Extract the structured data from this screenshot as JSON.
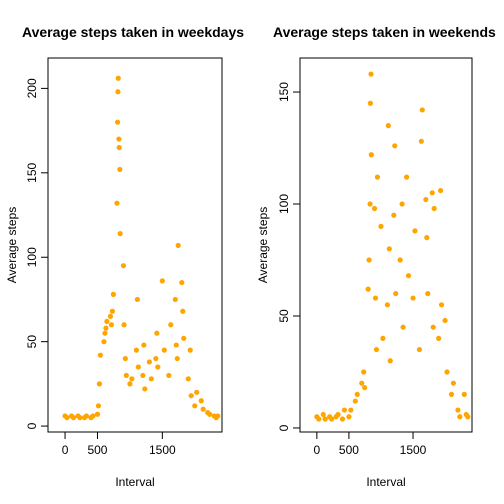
{
  "chart_data": [
    {
      "type": "scatter",
      "title": "Average steps taken in weekdays",
      "xlabel": "Interval",
      "ylabel": "Average steps",
      "color": "#FFA500",
      "xlim": [
        -263,
        2420
      ],
      "ylim": [
        -3.5,
        218
      ],
      "xticks": [
        0,
        500,
        1500
      ],
      "yticks": [
        0,
        50,
        100,
        150,
        200
      ],
      "x": [
        0,
        30,
        100,
        130,
        200,
        230,
        300,
        330,
        400,
        430,
        500,
        515,
        530,
        545,
        600,
        615,
        630,
        645,
        700,
        715,
        730,
        745,
        800,
        810,
        815,
        820,
        830,
        835,
        845,
        850,
        900,
        910,
        930,
        945,
        1000,
        1030,
        1100,
        1115,
        1130,
        1200,
        1215,
        1230,
        1300,
        1330,
        1400,
        1415,
        1430,
        1500,
        1530,
        1600,
        1630,
        1700,
        1715,
        1730,
        1745,
        1800,
        1815,
        1830,
        1900,
        1930,
        1945,
        2000,
        2030,
        2100,
        2130,
        2200,
        2230,
        2300,
        2330,
        2355
      ],
      "y": [
        6,
        5,
        6,
        5,
        6,
        5,
        5,
        6,
        5,
        6,
        7,
        12,
        25,
        42,
        50,
        55,
        58,
        62,
        65,
        60,
        68,
        78,
        132,
        180,
        198,
        206,
        170,
        165,
        152,
        114,
        95,
        60,
        40,
        30,
        25,
        28,
        45,
        75,
        35,
        30,
        48,
        22,
        38,
        28,
        40,
        55,
        35,
        86,
        45,
        30,
        60,
        75,
        48,
        40,
        107,
        85,
        68,
        52,
        28,
        45,
        18,
        12,
        20,
        15,
        10,
        8,
        7,
        6,
        5,
        6
      ]
    },
    {
      "type": "scatter",
      "title": "Average steps taken in weekends",
      "xlabel": "Interval",
      "ylabel": "Average steps",
      "color": "#FFA500",
      "xlim": [
        -263,
        2420
      ],
      "ylim": [
        -1.8,
        165.2
      ],
      "xticks": [
        0,
        500,
        1500
      ],
      "yticks": [
        0,
        50,
        100,
        150
      ],
      "x": [
        0,
        30,
        100,
        130,
        200,
        230,
        300,
        330,
        400,
        430,
        500,
        530,
        600,
        630,
        700,
        730,
        745,
        800,
        815,
        830,
        835,
        845,
        850,
        900,
        915,
        930,
        945,
        1000,
        1030,
        1100,
        1115,
        1130,
        1145,
        1200,
        1215,
        1230,
        1300,
        1330,
        1345,
        1400,
        1430,
        1500,
        1530,
        1600,
        1630,
        1645,
        1700,
        1715,
        1730,
        1800,
        1815,
        1830,
        1900,
        1930,
        1945,
        2000,
        2030,
        2100,
        2130,
        2200,
        2230,
        2300,
        2330,
        2355
      ],
      "y": [
        5,
        4,
        6,
        4,
        5,
        4,
        5,
        6,
        4,
        8,
        5,
        8,
        12,
        15,
        20,
        25,
        18,
        62,
        75,
        100,
        145,
        158,
        122,
        98,
        58,
        35,
        112,
        90,
        40,
        55,
        135,
        80,
        30,
        95,
        126,
        60,
        75,
        100,
        45,
        112,
        68,
        58,
        88,
        35,
        128,
        142,
        102,
        85,
        60,
        105,
        45,
        98,
        40,
        106,
        55,
        48,
        25,
        15,
        20,
        8,
        5,
        15,
        6,
        5
      ]
    }
  ]
}
